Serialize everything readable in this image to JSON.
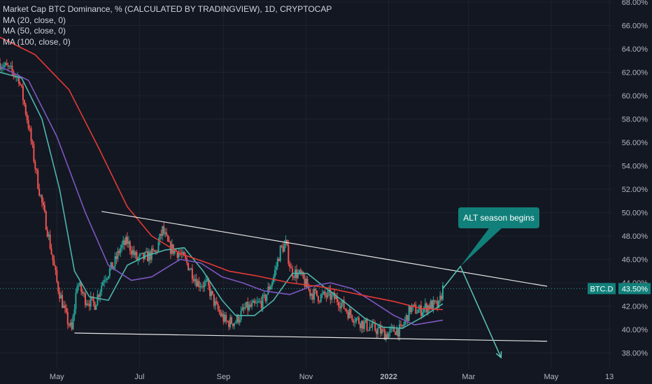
{
  "legend": {
    "title": "Market Cap BTC Dominance, % (CALCULATED BY TRADINGVIEW), 1D, CRYPTOCAP",
    "ma20": "MA (20, close, 0)",
    "ma50": "MA (50, close, 0)",
    "ma100": "MA (100, close, 0)"
  },
  "annotation": {
    "text": "ALT season begins"
  },
  "price_badge": {
    "symbol": "BTC.D",
    "value": "43.50%"
  },
  "colors": {
    "background": "#131722",
    "grid": "#1e222d",
    "up": "#26a69a",
    "down": "#ef5350",
    "ma20": "#4db6ac",
    "ma50": "#7e57c2",
    "ma100": "#e53935",
    "trendline": "#e6e6e6",
    "arrow": "#5ec5b8",
    "callout": "#11807a"
  },
  "chart_data": {
    "type": "line",
    "title": "Market Cap BTC Dominance, % (CALCULATED BY TRADINGVIEW), 1D, CRYPTOCAP",
    "ylabel": "",
    "xlabel": "",
    "ylim": [
      37,
      68
    ],
    "y_ticks": [
      "38.00%",
      "40.00%",
      "42.00%",
      "44.00%",
      "46.00%",
      "48.00%",
      "50.00%",
      "52.00%",
      "54.00%",
      "56.00%",
      "58.00%",
      "60.00%",
      "62.00%",
      "64.00%",
      "66.00%",
      "68.00%"
    ],
    "x_ticks": [
      "May",
      "Jul",
      "Sep",
      "Nov",
      "2022",
      "Mar",
      "May",
      "13"
    ],
    "x_range": [
      "2021-03-20",
      "2022-06-15"
    ],
    "last_value": 43.5,
    "price_path": [
      [
        "2021-03-20",
        62.8
      ],
      [
        "2021-03-27",
        62.2
      ],
      [
        "2021-04-03",
        61.5
      ],
      [
        "2021-04-10",
        57.5
      ],
      [
        "2021-04-17",
        52.5
      ],
      [
        "2021-04-24",
        48.5
      ],
      [
        "2021-05-01",
        44.0
      ],
      [
        "2021-05-08",
        41.0
      ],
      [
        "2021-05-12",
        39.9
      ],
      [
        "2021-05-16",
        44.0
      ],
      [
        "2021-05-22",
        42.6
      ],
      [
        "2021-05-29",
        42.2
      ],
      [
        "2021-06-05",
        44.5
      ],
      [
        "2021-06-12",
        45.5
      ],
      [
        "2021-06-17",
        47.0
      ],
      [
        "2021-06-22",
        47.5
      ],
      [
        "2021-06-29",
        46.0
      ],
      [
        "2021-07-06",
        46.2
      ],
      [
        "2021-07-13",
        46.6
      ],
      [
        "2021-07-18",
        48.5
      ],
      [
        "2021-07-23",
        47.0
      ],
      [
        "2021-07-30",
        46.6
      ],
      [
        "2021-08-06",
        45.5
      ],
      [
        "2021-08-13",
        44.0
      ],
      [
        "2021-08-20",
        43.8
      ],
      [
        "2021-08-27",
        41.8
      ],
      [
        "2021-09-03",
        40.6
      ],
      [
        "2021-09-10",
        40.7
      ],
      [
        "2021-09-17",
        41.8
      ],
      [
        "2021-09-24",
        42.0
      ],
      [
        "2021-10-01",
        42.5
      ],
      [
        "2021-10-08",
        44.5
      ],
      [
        "2021-10-13",
        46.8
      ],
      [
        "2021-10-17",
        47.3
      ],
      [
        "2021-10-21",
        45.0
      ],
      [
        "2021-10-28",
        44.6
      ],
      [
        "2021-11-04",
        43.2
      ],
      [
        "2021-11-11",
        42.8
      ],
      [
        "2021-11-18",
        42.9
      ],
      [
        "2021-11-25",
        42.5
      ],
      [
        "2021-12-02",
        41.5
      ],
      [
        "2021-12-09",
        40.8
      ],
      [
        "2021-12-16",
        40.3
      ],
      [
        "2021-12-23",
        40.0
      ],
      [
        "2021-12-30",
        39.6
      ],
      [
        "2022-01-06",
        40.0
      ],
      [
        "2022-01-10",
        39.9
      ],
      [
        "2022-01-17",
        41.8
      ],
      [
        "2022-01-24",
        41.6
      ],
      [
        "2022-01-31",
        42.1
      ],
      [
        "2022-02-07",
        42.0
      ],
      [
        "2022-02-10",
        43.5
      ]
    ],
    "series": [
      {
        "name": "MA (20, close, 0)",
        "points": [
          [
            "2021-03-20",
            62.0
          ],
          [
            "2021-04-05",
            61.5
          ],
          [
            "2021-04-20",
            58.0
          ],
          [
            "2021-05-03",
            52.0
          ],
          [
            "2021-05-14",
            45.0
          ],
          [
            "2021-05-25",
            42.8
          ],
          [
            "2021-06-08",
            42.5
          ],
          [
            "2021-06-22",
            45.5
          ],
          [
            "2021-07-06",
            46.3
          ],
          [
            "2021-07-20",
            46.8
          ],
          [
            "2021-08-03",
            47.0
          ],
          [
            "2021-08-17",
            45.0
          ],
          [
            "2021-08-31",
            42.5
          ],
          [
            "2021-09-10",
            41.2
          ],
          [
            "2021-09-24",
            41.2
          ],
          [
            "2021-10-08",
            42.5
          ],
          [
            "2021-10-22",
            44.8
          ],
          [
            "2021-11-02",
            44.8
          ],
          [
            "2021-11-16",
            43.5
          ],
          [
            "2021-11-30",
            42.3
          ],
          [
            "2021-12-14",
            41.0
          ],
          [
            "2021-12-28",
            40.2
          ],
          [
            "2022-01-11",
            40.1
          ],
          [
            "2022-01-25",
            41.0
          ],
          [
            "2022-02-10",
            42.2
          ]
        ]
      },
      {
        "name": "MA (50, close, 0)",
        "points": [
          [
            "2021-03-20",
            62.5
          ],
          [
            "2021-04-10",
            61.3
          ],
          [
            "2021-05-01",
            56.5
          ],
          [
            "2021-05-22",
            50.0
          ],
          [
            "2021-06-08",
            45.5
          ],
          [
            "2021-06-25",
            44.2
          ],
          [
            "2021-07-10",
            44.5
          ],
          [
            "2021-07-31",
            46.0
          ],
          [
            "2021-08-15",
            45.7
          ],
          [
            "2021-08-31",
            44.5
          ],
          [
            "2021-09-15",
            44.0
          ],
          [
            "2021-10-01",
            43.3
          ],
          [
            "2021-10-20",
            43.0
          ],
          [
            "2021-11-05",
            43.7
          ],
          [
            "2021-11-19",
            44.0
          ],
          [
            "2021-12-05",
            43.5
          ],
          [
            "2021-12-20",
            42.4
          ],
          [
            "2022-01-05",
            41.2
          ],
          [
            "2022-01-20",
            40.4
          ],
          [
            "2022-02-10",
            40.8
          ]
        ]
      },
      {
        "name": "MA (100, close, 0)",
        "points": [
          [
            "2021-03-20",
            65.0
          ],
          [
            "2021-04-15",
            63.5
          ],
          [
            "2021-05-10",
            60.5
          ],
          [
            "2021-06-01",
            55.5
          ],
          [
            "2021-06-22",
            50.5
          ],
          [
            "2021-07-10",
            48.0
          ],
          [
            "2021-07-31",
            46.5
          ],
          [
            "2021-08-20",
            45.7
          ],
          [
            "2021-09-05",
            45.0
          ],
          [
            "2021-09-25",
            44.6
          ],
          [
            "2021-10-20",
            44.0
          ],
          [
            "2021-11-15",
            43.6
          ],
          [
            "2021-12-10",
            43.0
          ],
          [
            "2022-01-05",
            42.4
          ],
          [
            "2022-01-25",
            41.8
          ],
          [
            "2022-02-10",
            41.7
          ]
        ]
      }
    ],
    "trendlines": [
      {
        "start": [
          "2021-06-03",
          50.1
        ],
        "end": [
          "2022-04-28",
          43.7
        ]
      },
      {
        "start": [
          "2021-05-14",
          39.7
        ],
        "end": [
          "2022-04-28",
          39.0
        ]
      }
    ],
    "arrow": {
      "from": [
        "2022-02-10",
        43.5
      ],
      "via": [
        "2022-02-23",
        45.4
      ],
      "to": [
        "2022-03-25",
        37.6
      ]
    }
  }
}
